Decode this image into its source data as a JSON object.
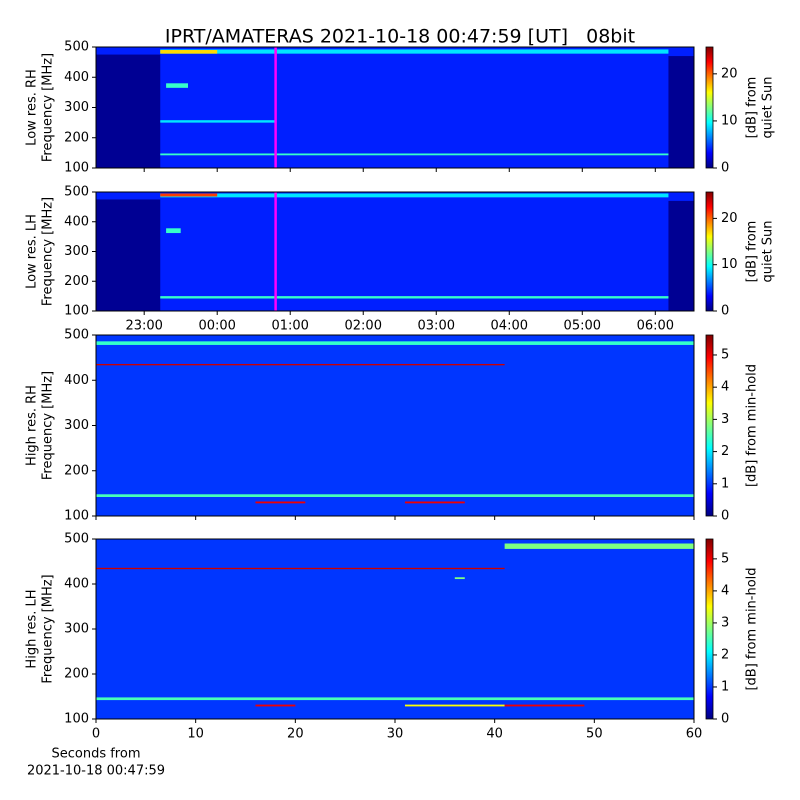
{
  "chart_data": [
    {
      "type": "heatmap",
      "title": "IPRT/AMATERAS 2021-10-18 00:47:59 [UT]   08bit",
      "ylabel": [
        "Low res. RH",
        "Frequency [MHz]"
      ],
      "xlim": [
        22.34,
        30.53
      ],
      "xticks": [
        23,
        24,
        25,
        26,
        27,
        28,
        29,
        30
      ],
      "xtick_labels": false,
      "ylim": [
        100,
        500
      ],
      "yticks": [
        100,
        200,
        300,
        400,
        500
      ],
      "colorbar": {
        "label": [
          "[dB] from",
          "quiet Sun"
        ],
        "lim": [
          0,
          25.7
        ],
        "ticks": [
          0,
          10,
          20
        ],
        "cmap": "jet"
      },
      "base": 4,
      "features": [
        {
          "x": [
            22.34,
            23.22
          ],
          "y": [
            100,
            475
          ],
          "value": 0.5
        },
        {
          "x": [
            30.18,
            30.53
          ],
          "y": [
            100,
            470
          ],
          "value": 0.5
        },
        {
          "x": [
            23.22,
            30.18
          ],
          "y": [
            478,
            492
          ],
          "value": 9
        },
        {
          "x": [
            23.22,
            24.0
          ],
          "y": [
            478,
            490
          ],
          "value": 17
        },
        {
          "x": [
            23.3,
            23.6
          ],
          "y": [
            365,
            380
          ],
          "value": 11
        },
        {
          "x": [
            23.22,
            24.8
          ],
          "y": [
            250,
            258
          ],
          "value": 9
        },
        {
          "x": [
            23.22,
            30.18
          ],
          "y": [
            142,
            148
          ],
          "value": 11
        }
      ],
      "marker": {
        "x": 24.8,
        "color": "#ff00ff"
      }
    },
    {
      "type": "heatmap",
      "ylabel": [
        "Low res. LH",
        "Frequency [MHz]"
      ],
      "xlim": [
        22.34,
        30.53
      ],
      "xticks": [
        {
          "value": 23,
          "label": "23:00"
        },
        {
          "value": 24,
          "label": "00:00"
        },
        {
          "value": 25,
          "label": "01:00"
        },
        {
          "value": 26,
          "label": "02:00"
        },
        {
          "value": 27,
          "label": "03:00"
        },
        {
          "value": 28,
          "label": "04:00"
        },
        {
          "value": 29,
          "label": "05:00"
        },
        {
          "value": 30,
          "label": "06:00"
        }
      ],
      "xtick_labels": true,
      "ylim": [
        100,
        500
      ],
      "yticks": [
        100,
        200,
        300,
        400,
        500
      ],
      "colorbar": {
        "label": [
          "[dB] from",
          "quiet Sun"
        ],
        "lim": [
          0,
          25.7
        ],
        "ticks": [
          0,
          10,
          20
        ],
        "cmap": "jet"
      },
      "base": 4,
      "features": [
        {
          "x": [
            22.34,
            23.22
          ],
          "y": [
            100,
            475
          ],
          "value": 0.5
        },
        {
          "x": [
            30.18,
            30.53
          ],
          "y": [
            100,
            470
          ],
          "value": 0.5
        },
        {
          "x": [
            23.22,
            30.18
          ],
          "y": [
            482,
            495
          ],
          "value": 9
        },
        {
          "x": [
            23.22,
            24.0
          ],
          "y": [
            485,
            495
          ],
          "value": 21
        },
        {
          "x": [
            23.3,
            23.5
          ],
          "y": [
            362,
            378
          ],
          "value": 11
        },
        {
          "x": [
            23.22,
            30.18
          ],
          "y": [
            142,
            150
          ],
          "value": 11
        }
      ],
      "marker": {
        "x": 24.8,
        "color": "#ff00ff"
      }
    },
    {
      "type": "heatmap",
      "ylabel": [
        "High res. RH",
        "Frequency [MHz]"
      ],
      "xlim": [
        0,
        60
      ],
      "xticks": [
        0,
        10,
        20,
        30,
        40,
        50,
        60
      ],
      "xtick_labels": false,
      "ylim": [
        100,
        500
      ],
      "yticks": [
        100,
        200,
        300,
        400,
        500
      ],
      "colorbar": {
        "label": [
          "[dB] from min-hold"
        ],
        "lim": [
          0,
          5.62
        ],
        "ticks": [
          0,
          1,
          2,
          3,
          4,
          5
        ],
        "cmap": "jet"
      },
      "base": 1,
      "features": [
        {
          "x": [
            0,
            60
          ],
          "y": [
            478,
            486
          ],
          "value": 2.4
        },
        {
          "x": [
            0,
            41
          ],
          "y": [
            433,
            436
          ],
          "value": 5.2
        },
        {
          "x": [
            0,
            60
          ],
          "y": [
            142,
            148
          ],
          "value": 2.5
        },
        {
          "x": [
            16,
            21
          ],
          "y": [
            128,
            132
          ],
          "value": 5
        },
        {
          "x": [
            31,
            37
          ],
          "y": [
            128,
            132
          ],
          "value": 5
        }
      ]
    },
    {
      "type": "heatmap",
      "ylabel": [
        "High res. LH",
        "Frequency [MHz]"
      ],
      "xlabel": [
        "Seconds from",
        "2021-10-18 00:47:59"
      ],
      "xlim": [
        0,
        60
      ],
      "xticks": [
        0,
        10,
        20,
        30,
        40,
        50,
        60
      ],
      "xtick_labels": true,
      "ylim": [
        100,
        500
      ],
      "yticks": [
        100,
        200,
        300,
        400,
        500
      ],
      "colorbar": {
        "label": [
          "[dB] from min-hold"
        ],
        "lim": [
          0,
          5.62
        ],
        "ticks": [
          0,
          1,
          2,
          3,
          4,
          5
        ],
        "cmap": "jet"
      },
      "base": 1,
      "features": [
        {
          "x": [
            41,
            60
          ],
          "y": [
            478,
            490
          ],
          "value": 2.8
        },
        {
          "x": [
            0,
            41
          ],
          "y": [
            433,
            436
          ],
          "value": 5.2
        },
        {
          "x": [
            36,
            37
          ],
          "y": [
            411,
            415
          ],
          "value": 2.8
        },
        {
          "x": [
            0,
            60
          ],
          "y": [
            142,
            148
          ],
          "value": 2.5
        },
        {
          "x": [
            16,
            20
          ],
          "y": [
            128,
            132
          ],
          "value": 5
        },
        {
          "x": [
            31,
            41
          ],
          "y": [
            128,
            132
          ],
          "value": 3.5
        },
        {
          "x": [
            41,
            49
          ],
          "y": [
            128,
            132
          ],
          "value": 5
        }
      ]
    }
  ]
}
